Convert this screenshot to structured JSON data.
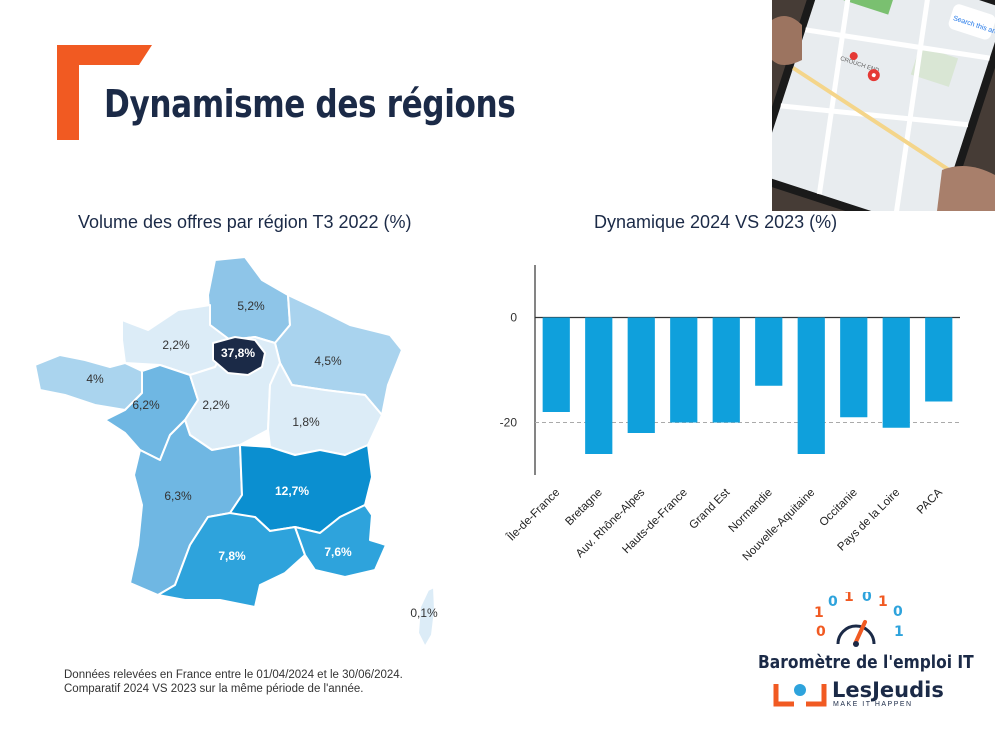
{
  "page_title": "Dynamisme des régions",
  "map": {
    "subtitle": "Volume des offres par région T3 2022 (%)",
    "regions": [
      {
        "name": "Île-de-France",
        "label": "37,8%",
        "value": 37.8,
        "color": "#1b2a47",
        "text_color": "#ffffff"
      },
      {
        "name": "Hauts-de-France",
        "label": "5,2%",
        "value": 5.2,
        "color": "#8ec5e8",
        "text_color": "#333333"
      },
      {
        "name": "Normandie",
        "label": "2,2%",
        "value": 2.2,
        "color": "#dcecf7",
        "text_color": "#333333"
      },
      {
        "name": "Grand Est",
        "label": "4,5%",
        "value": 4.5,
        "color": "#a9d3ee",
        "text_color": "#333333"
      },
      {
        "name": "Bretagne",
        "label": "4%",
        "value": 4,
        "color": "#aad4ee",
        "text_color": "#333333"
      },
      {
        "name": "Pays de la Loire",
        "label": "6,2%",
        "value": 6.2,
        "color": "#6fb7e3",
        "text_color": "#333333"
      },
      {
        "name": "Centre-Val de Loire",
        "label": "2,2%",
        "value": 2.2,
        "color": "#dcecf7",
        "text_color": "#333333"
      },
      {
        "name": "Bourgogne-Franche-Comté",
        "label": "1,8%",
        "value": 1.8,
        "color": "#dcecf7",
        "text_color": "#333333"
      },
      {
        "name": "Nouvelle-Aquitaine",
        "label": "6,3%",
        "value": 6.3,
        "color": "#6fb7e3",
        "text_color": "#333333"
      },
      {
        "name": "Auvergne-Rhône-Alpes",
        "label": "12,7%",
        "value": 12.7,
        "color": "#0b8fd0",
        "text_color": "#ffffff"
      },
      {
        "name": "Occitanie",
        "label": "7,8%",
        "value": 7.8,
        "color": "#2ea3dc",
        "text_color": "#ffffff"
      },
      {
        "name": "PACA",
        "label": "7,6%",
        "value": 7.6,
        "color": "#2ea3dc",
        "text_color": "#ffffff"
      },
      {
        "name": "Corse",
        "label": "0,1%",
        "value": 0.1,
        "color": "#dcecf7",
        "text_color": "#333333"
      }
    ]
  },
  "chart_data": {
    "type": "bar",
    "title": "Dynamique  2024 VS 2023 (%)",
    "categories": [
      "Île-de-France",
      "Bretagne",
      "Auv. Rhône-Alpes",
      "Hauts-de-France",
      "Grand Est",
      "Normandie",
      "Nouvelle-Aquitaine",
      "Occitanie",
      "Pays de la Loire",
      "PACA"
    ],
    "values": [
      -18,
      -26,
      -22,
      -20,
      -20,
      -13,
      -26,
      -19,
      -21,
      -16
    ],
    "yticks": [
      0,
      -20
    ],
    "ytick_labels": [
      "0",
      "-20"
    ],
    "ylim": [
      -30,
      10
    ],
    "bar_color": "#0fa0dc",
    "reference_line": -20,
    "grid": false,
    "legend": "none"
  },
  "footnote": {
    "line1": "Données relevées en France entre le 01/04/2024 et le 30/06/2024.",
    "line2": "Comparatif 2024 VS 2023 sur la même période de l'année."
  },
  "brand": {
    "barometer": "Baromètre de l'emploi IT",
    "company": "LesJeudis",
    "tagline": "MAKE IT HAPPEN",
    "accent_color": "#f15a22",
    "dark_color": "#1b2a47",
    "binary": [
      "1",
      "0",
      "1",
      "0",
      "1",
      "0",
      "0",
      "1"
    ]
  },
  "photo": {
    "map_labels": [
      "Search this area",
      "CROUCH END"
    ]
  }
}
